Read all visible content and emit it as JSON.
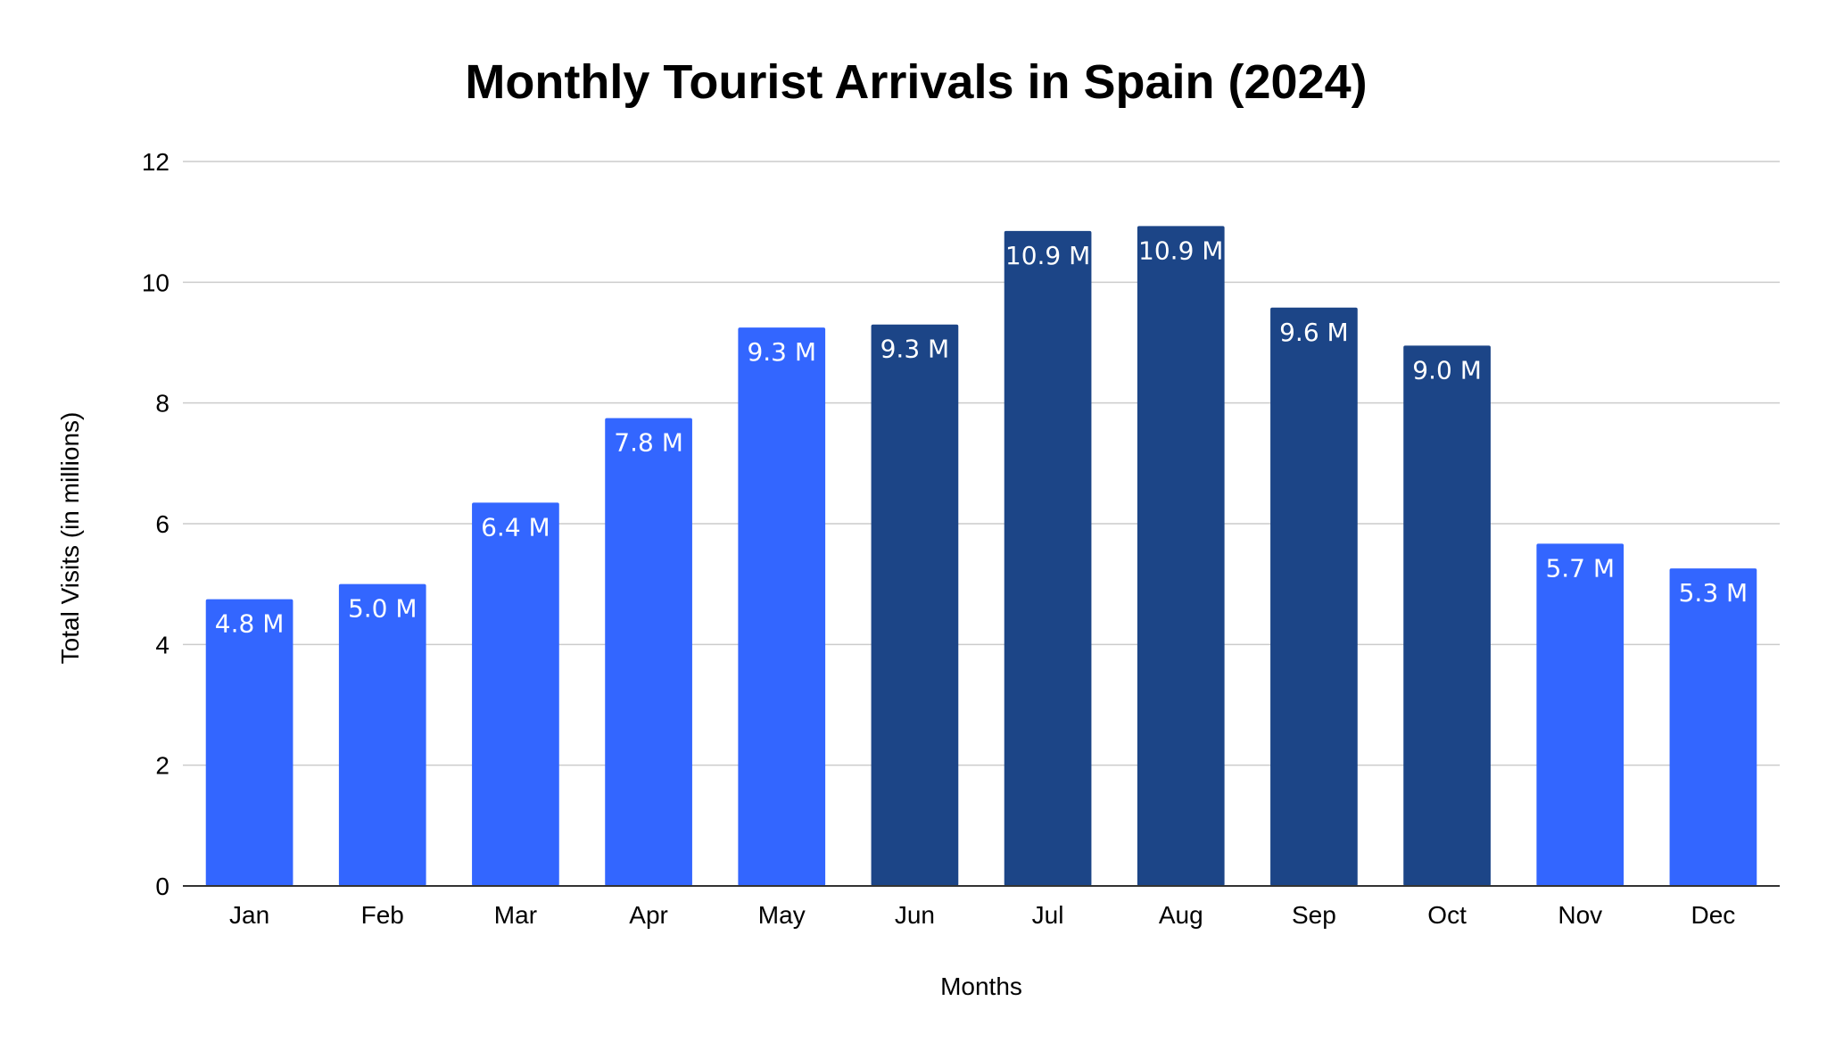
{
  "chart_data": {
    "type": "bar",
    "title": "Monthly Tourist Arrivals in Spain (2024)",
    "xlabel": "Months",
    "ylabel": "Total Visits (in millions)",
    "ylim": [
      0,
      12
    ],
    "yticks": [
      0,
      2,
      4,
      6,
      8,
      10,
      12
    ],
    "grid": true,
    "legend": "none",
    "categories": [
      "Jan",
      "Feb",
      "Mar",
      "Apr",
      "May",
      "Jun",
      "Jul",
      "Aug",
      "Sep",
      "Oct",
      "Nov",
      "Dec"
    ],
    "values": [
      4.75,
      5.0,
      6.35,
      7.75,
      9.25,
      9.3,
      10.85,
      10.93,
      9.58,
      8.95,
      5.67,
      5.26
    ],
    "data_labels": [
      "4.8 M",
      "5.0 M",
      "6.4 M",
      "7.8 M",
      "9.3 M",
      "9.3 M",
      "10.9 M",
      "10.9 M",
      "9.6 M",
      "9.0 M",
      "5.7 M",
      "5.3 M"
    ],
    "bar_colors": [
      "#3366ff",
      "#3366ff",
      "#3366ff",
      "#3366ff",
      "#3366ff",
      "#1c4587",
      "#1c4587",
      "#1c4587",
      "#1c4587",
      "#1c4587",
      "#3366ff",
      "#3366ff"
    ]
  }
}
